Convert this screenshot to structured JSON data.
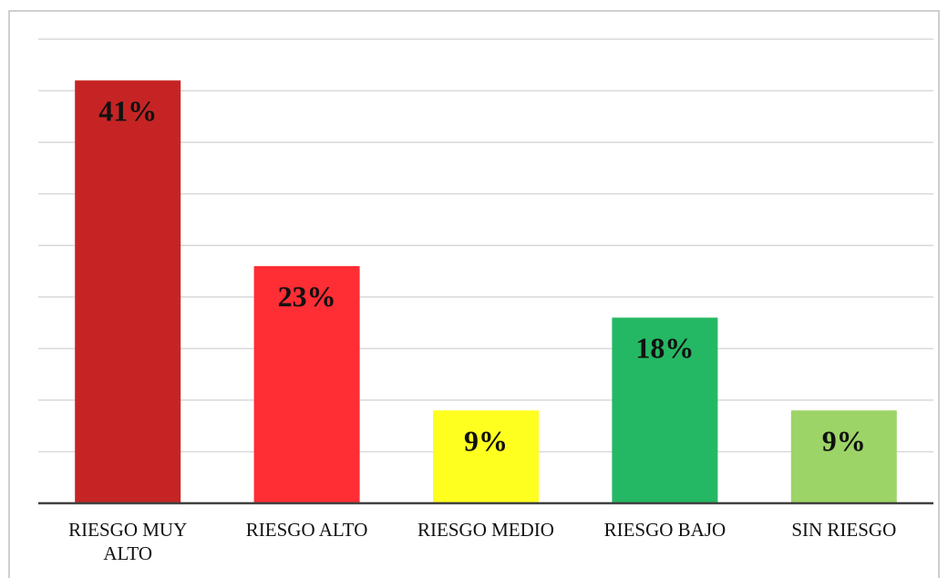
{
  "chart_data": {
    "type": "bar",
    "categories": [
      "RIESGO MUY ALTO",
      "RIESGO ALTO",
      "RIESGO MEDIO",
      "RIESGO BAJO",
      "SIN RIESGO"
    ],
    "values": [
      41,
      23,
      9,
      18,
      9
    ],
    "value_labels": [
      "41%",
      "23%",
      "9%",
      "18%",
      "9%"
    ],
    "colors": [
      "#c62424",
      "#ff2d34",
      "#ffff1f",
      "#25b864",
      "#9dd467"
    ],
    "ylim": [
      0,
      45
    ],
    "yticks": [
      0,
      5,
      10,
      15,
      20,
      25,
      30,
      35,
      40,
      45
    ],
    "grid": true
  }
}
